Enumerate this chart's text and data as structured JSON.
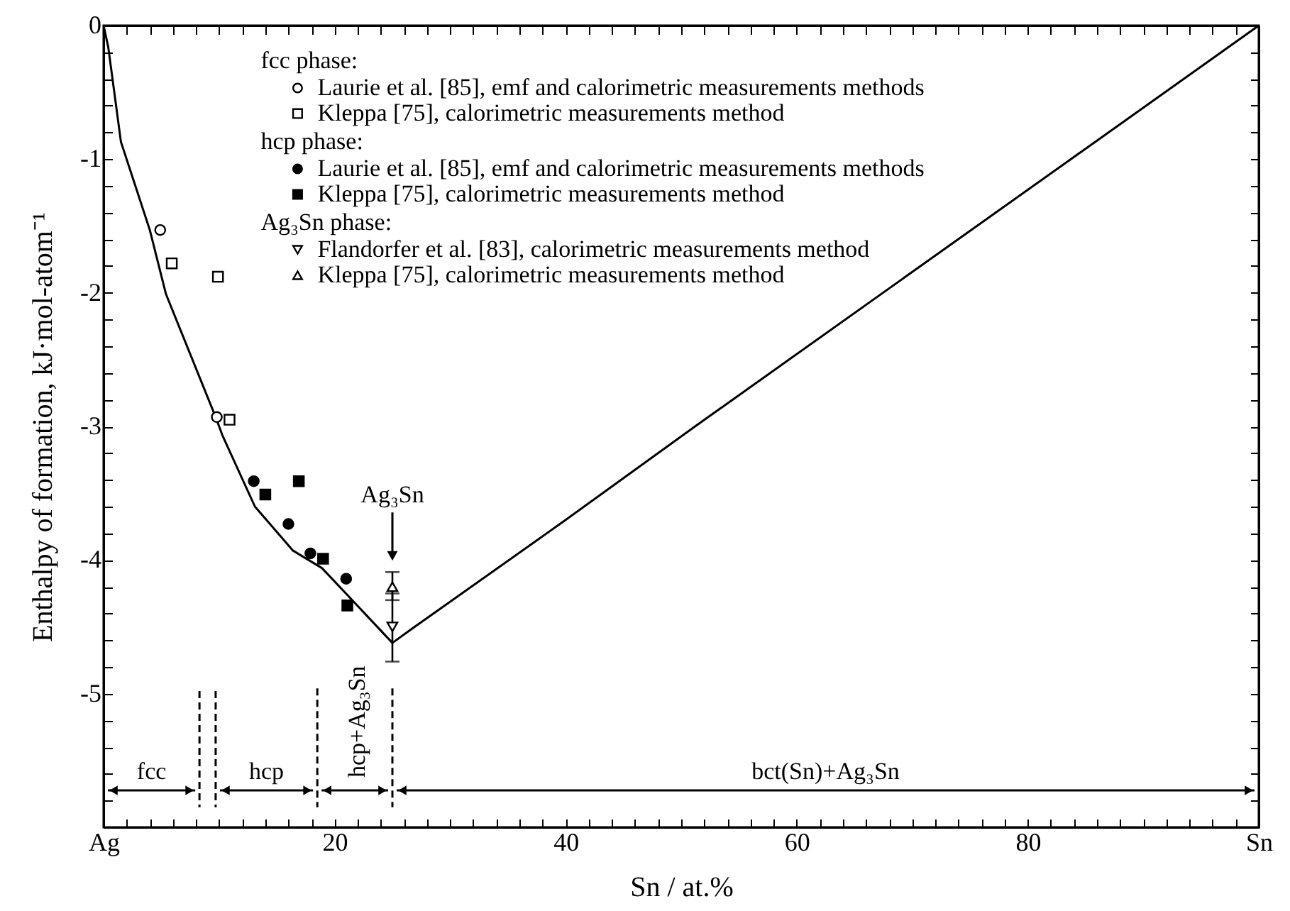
{
  "chart_data": {
    "type": "scatter",
    "xlabel": "Sn / at.%",
    "ylabel": "Enthalpy of formation,  kJ·mol-atom⁻¹",
    "xlim": [
      0,
      100
    ],
    "ylim": [
      -6,
      0
    ],
    "legend": "top",
    "xticks": [
      {
        "value": 0,
        "label": "Ag"
      },
      {
        "value": 2,
        "label": null
      },
      {
        "value": 4,
        "label": null
      },
      {
        "value": 6,
        "label": null
      },
      {
        "value": 8,
        "label": null
      },
      {
        "value": 10,
        "label": null
      },
      {
        "value": 12,
        "label": null
      },
      {
        "value": 14,
        "label": null
      },
      {
        "value": 16,
        "label": null
      },
      {
        "value": 18,
        "label": null
      },
      20,
      {
        "value": 22,
        "label": null
      },
      {
        "value": 24,
        "label": null
      },
      {
        "value": 26,
        "label": null
      },
      {
        "value": 28,
        "label": null
      },
      {
        "value": 30,
        "label": null
      },
      {
        "value": 32,
        "label": null
      },
      {
        "value": 34,
        "label": null
      },
      {
        "value": 36,
        "label": null
      },
      {
        "value": 38,
        "label": null
      },
      40,
      {
        "value": 42,
        "label": null
      },
      {
        "value": 44,
        "label": null
      },
      {
        "value": 46,
        "label": null
      },
      {
        "value": 48,
        "label": null
      },
      {
        "value": 50,
        "label": null
      },
      {
        "value": 52,
        "label": null
      },
      {
        "value": 54,
        "label": null
      },
      {
        "value": 56,
        "label": null
      },
      {
        "value": 58,
        "label": null
      },
      60,
      {
        "value": 62,
        "label": null
      },
      {
        "value": 64,
        "label": null
      },
      {
        "value": 66,
        "label": null
      },
      {
        "value": 68,
        "label": null
      },
      {
        "value": 70,
        "label": null
      },
      {
        "value": 72,
        "label": null
      },
      {
        "value": 74,
        "label": null
      },
      {
        "value": 76,
        "label": null
      },
      {
        "value": 78,
        "label": null
      },
      80,
      {
        "value": 82,
        "label": null
      },
      {
        "value": 84,
        "label": null
      },
      {
        "value": 86,
        "label": null
      },
      {
        "value": 88,
        "label": null
      },
      {
        "value": 90,
        "label": null
      },
      {
        "value": 92,
        "label": null
      },
      {
        "value": 94,
        "label": null
      },
      {
        "value": 96,
        "label": null
      },
      {
        "value": 98,
        "label": null
      },
      {
        "value": 100,
        "label": "Sn"
      }
    ],
    "yticks": [
      0,
      {
        "value": -0.2,
        "label": null
      },
      {
        "value": -0.4,
        "label": null
      },
      {
        "value": -0.6,
        "label": null
      },
      {
        "value": -0.8,
        "label": null
      },
      -1,
      {
        "value": -1.2,
        "label": null
      },
      {
        "value": -1.4,
        "label": null
      },
      {
        "value": -1.6,
        "label": null
      },
      {
        "value": -1.8,
        "label": null
      },
      -2,
      {
        "value": -2.2,
        "label": null
      },
      {
        "value": -2.4,
        "label": null
      },
      {
        "value": -2.6,
        "label": null
      },
      {
        "value": -2.8,
        "label": null
      },
      -3,
      {
        "value": -3.2,
        "label": null
      },
      {
        "value": -3.4,
        "label": null
      },
      {
        "value": -3.6,
        "label": null
      },
      {
        "value": -3.8,
        "label": null
      },
      -4,
      {
        "value": -4.2,
        "label": null
      },
      {
        "value": -4.4,
        "label": null
      },
      {
        "value": -4.6,
        "label": null
      },
      {
        "value": -4.8,
        "label": null
      },
      -5,
      {
        "value": -5.2,
        "label": null
      },
      {
        "value": -5.4,
        "label": null
      },
      {
        "value": -5.6,
        "label": null
      },
      {
        "value": -5.8,
        "label": null
      },
      {
        "value": -6,
        "label": null
      }
    ],
    "annotations": [
      "fcc phase:",
      "hcp phase:",
      "Ag₃Sn phase:",
      "Ag₃Sn",
      "fcc",
      "hcp",
      "hcp+Ag₃Sn",
      "bct(Sn)+Ag₃Sn"
    ],
    "series": [
      {
        "type": "line",
        "color": "#000000",
        "marker": "none",
        "x": [
          0,
          0.4,
          1.5,
          4.0,
          5.4,
          9.7,
          10.3,
          13.1,
          16.4,
          18.9,
          21.3,
          25,
          26.6,
          40,
          51.2,
          100
        ],
        "values": [
          0,
          -0.16,
          -0.87,
          -1.53,
          -2.01,
          -2.93,
          -3.07,
          -3.6,
          -3.93,
          -4.06,
          -4.28,
          -4.62,
          -4.52,
          -3.7,
          -3.0,
          0
        ]
      },
      {
        "name": "Laurie et al. [85], emf and calorimetric measurements methods",
        "color": "#ffffff",
        "marker": "circle",
        "x": [
          4.9,
          9.8
        ],
        "values": [
          -1.53,
          -2.93
        ]
      },
      {
        "name": "Kleppa [75], calorimetric measurements method",
        "color": "#ffffff",
        "marker": "square",
        "x": [
          5.9,
          9.9,
          10.9
        ],
        "values": [
          -1.78,
          -1.88,
          -2.95
        ]
      },
      {
        "name": "Laurie et al. [85], emf and calorimetric measurements methods",
        "color": "#000000",
        "marker": "circle",
        "x": [
          13.0,
          16.0,
          17.9,
          21.0
        ],
        "values": [
          -3.41,
          -3.73,
          -3.95,
          -4.14
        ]
      },
      {
        "name": "Kleppa [75], calorimetric measurements method",
        "color": "#000000",
        "marker": "square",
        "x": [
          14.0,
          16.9,
          19.0,
          21.1
        ],
        "values": [
          -3.51,
          -3.41,
          -3.99,
          -4.34
        ]
      },
      {
        "name": "Flandorfer et al. [83], calorimetric measurements method",
        "color": "#ffffff",
        "marker": "triangle-down",
        "x": [
          25
        ],
        "values": [
          -4.5
        ],
        "errors": [
          [
            -4.76,
            -4.25
          ]
        ]
      },
      {
        "name": "Kleppa [75], calorimetric measurements method",
        "color": "#ffffff",
        "marker": "triangle",
        "x": [
          25
        ],
        "values": [
          -4.2
        ],
        "errors": [
          [
            -4.3,
            -4.09
          ]
        ]
      },
      {
        "type": "line",
        "color": "#000000",
        "line_style": "dashed",
        "x": [
          8.3,
          8.3
        ],
        "values": [
          -4.98,
          -5.85
        ]
      },
      {
        "type": "line",
        "color": "#000000",
        "line_style": "dashed",
        "x": [
          9.7,
          9.7
        ],
        "values": [
          -4.98,
          -5.85
        ]
      },
      {
        "type": "line",
        "color": "#000000",
        "line_style": "dashed",
        "x": [
          18.5,
          18.5
        ],
        "values": [
          -4.96,
          -5.85
        ]
      },
      {
        "type": "line",
        "color": "#000000",
        "line_style": "dashed",
        "x": [
          25,
          25
        ],
        "values": [
          -4.96,
          -5.85
        ]
      }
    ]
  }
}
